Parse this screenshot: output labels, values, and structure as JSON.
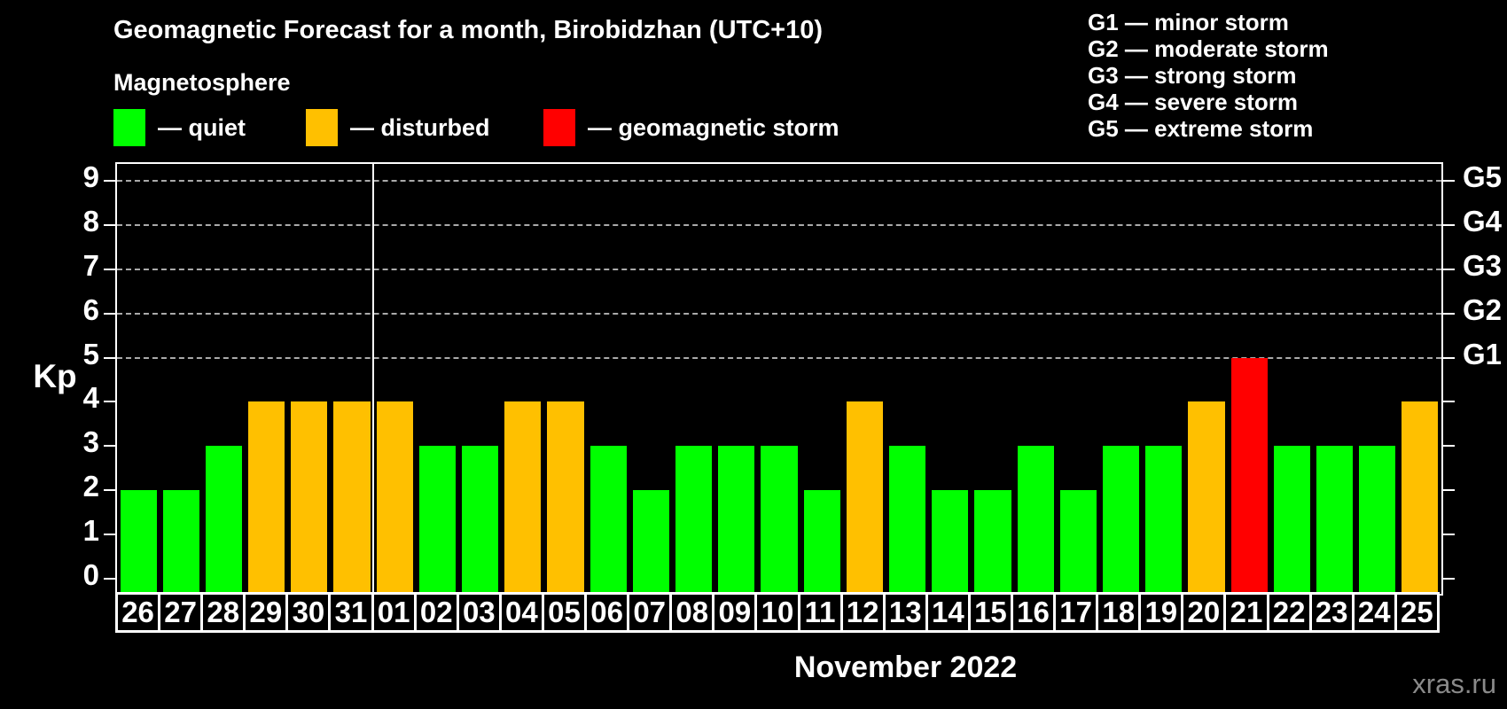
{
  "chart_data": {
    "type": "bar",
    "title": "Geomagnetic Forecast for a month, Birobidzhan (UTC+10)",
    "subtitle": "Magnetosphere",
    "xlabel": "November 2022",
    "ylabel": "Kp",
    "ylim": [
      0,
      9
    ],
    "yticks": [
      0,
      1,
      2,
      3,
      4,
      5,
      6,
      7,
      8,
      9
    ],
    "gridlines_at_kp": [
      5,
      6,
      7,
      8,
      9
    ],
    "grid": "dashed-horizontal-above-kp5",
    "legend_position": "top-left",
    "state_colors": {
      "quiet": "#00ff00",
      "disturbed": "#ffc000",
      "storm": "#ff0000"
    },
    "legend": [
      {
        "state": "quiet",
        "label": "— quiet",
        "color": "#00ff00"
      },
      {
        "state": "disturbed",
        "label": "— disturbed",
        "color": "#ffc000"
      },
      {
        "state": "storm",
        "label": "— geomagnetic storm",
        "color": "#ff0000"
      }
    ],
    "g_scale_legend": [
      "G1 — minor storm",
      "G2 — moderate storm",
      "G3 — strong storm",
      "G4 — severe storm",
      "G5 — extreme storm"
    ],
    "right_axis_labels": [
      {
        "kp": 9,
        "label": "G5"
      },
      {
        "kp": 8,
        "label": "G4"
      },
      {
        "kp": 7,
        "label": "G3"
      },
      {
        "kp": 6,
        "label": "G2"
      },
      {
        "kp": 5,
        "label": "G1"
      }
    ],
    "month_separator_after_index": 5,
    "bars": [
      {
        "day": "26",
        "kp": 2,
        "state": "quiet"
      },
      {
        "day": "27",
        "kp": 2,
        "state": "quiet"
      },
      {
        "day": "28",
        "kp": 3,
        "state": "quiet"
      },
      {
        "day": "29",
        "kp": 4,
        "state": "disturbed"
      },
      {
        "day": "30",
        "kp": 4,
        "state": "disturbed"
      },
      {
        "day": "31",
        "kp": 4,
        "state": "disturbed"
      },
      {
        "day": "01",
        "kp": 4,
        "state": "disturbed"
      },
      {
        "day": "02",
        "kp": 3,
        "state": "quiet"
      },
      {
        "day": "03",
        "kp": 3,
        "state": "quiet"
      },
      {
        "day": "04",
        "kp": 4,
        "state": "disturbed"
      },
      {
        "day": "05",
        "kp": 4,
        "state": "disturbed"
      },
      {
        "day": "06",
        "kp": 3,
        "state": "quiet"
      },
      {
        "day": "07",
        "kp": 2,
        "state": "quiet"
      },
      {
        "day": "08",
        "kp": 3,
        "state": "quiet"
      },
      {
        "day": "09",
        "kp": 3,
        "state": "quiet"
      },
      {
        "day": "10",
        "kp": 3,
        "state": "quiet"
      },
      {
        "day": "11",
        "kp": 2,
        "state": "quiet"
      },
      {
        "day": "12",
        "kp": 4,
        "state": "disturbed"
      },
      {
        "day": "13",
        "kp": 3,
        "state": "quiet"
      },
      {
        "day": "14",
        "kp": 2,
        "state": "quiet"
      },
      {
        "day": "15",
        "kp": 2,
        "state": "quiet"
      },
      {
        "day": "16",
        "kp": 3,
        "state": "quiet"
      },
      {
        "day": "17",
        "kp": 2,
        "state": "quiet"
      },
      {
        "day": "18",
        "kp": 3,
        "state": "quiet"
      },
      {
        "day": "19",
        "kp": 3,
        "state": "quiet"
      },
      {
        "day": "20",
        "kp": 4,
        "state": "disturbed"
      },
      {
        "day": "21",
        "kp": 5,
        "state": "storm"
      },
      {
        "day": "22",
        "kp": 3,
        "state": "quiet"
      },
      {
        "day": "23",
        "kp": 3,
        "state": "quiet"
      },
      {
        "day": "24",
        "kp": 3,
        "state": "quiet"
      },
      {
        "day": "25",
        "kp": 4,
        "state": "disturbed"
      }
    ],
    "watermark": "xras.ru"
  }
}
